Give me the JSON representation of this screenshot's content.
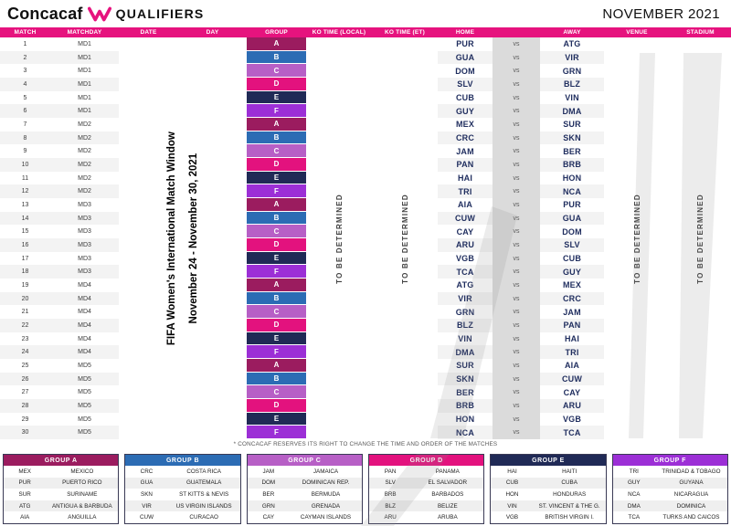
{
  "header": {
    "brand": "Concacaf",
    "title": "QUALIFIERS",
    "month": "NOVEMBER 2021"
  },
  "colors": {
    "header_bar": "#E6137E",
    "vs_strip": "#DBDBDB",
    "team_text": "#1F2D5E",
    "groups": {
      "A": "#9B1C5F",
      "B": "#2C6CB4",
      "C": "#B75FC6",
      "D": "#E3127E",
      "E": "#202A56",
      "F": "#9C2FD6"
    }
  },
  "table": {
    "columns": [
      "MATCH",
      "MATCHDAY",
      "DATE",
      "DAY",
      "GROUP",
      "KO TIME (LOCAL)",
      "KO TIME (ET)",
      "HOME",
      "",
      "AWAY",
      "VENUE",
      "STADIUM"
    ],
    "vs_label": "vs",
    "merged": {
      "match_window_line1": "FIFA Women's International Match Window",
      "match_window_line2": "November 24 - November 30, 2021",
      "ko_time_local": "TO BE DETERMINED",
      "ko_time_et": "TO BE DETERMINED",
      "venue": "TO BE DETERMINED",
      "stadium": "TO BE DETERMINED"
    },
    "matches": [
      {
        "match": 1,
        "matchday": "MD1",
        "group": "A",
        "home": "PUR",
        "away": "ATG"
      },
      {
        "match": 2,
        "matchday": "MD1",
        "group": "B",
        "home": "GUA",
        "away": "VIR"
      },
      {
        "match": 3,
        "matchday": "MD1",
        "group": "C",
        "home": "DOM",
        "away": "GRN"
      },
      {
        "match": 4,
        "matchday": "MD1",
        "group": "D",
        "home": "SLV",
        "away": "BLZ"
      },
      {
        "match": 5,
        "matchday": "MD1",
        "group": "E",
        "home": "CUB",
        "away": "VIN"
      },
      {
        "match": 6,
        "matchday": "MD1",
        "group": "F",
        "home": "GUY",
        "away": "DMA"
      },
      {
        "match": 7,
        "matchday": "MD2",
        "group": "A",
        "home": "MEX",
        "away": "SUR"
      },
      {
        "match": 8,
        "matchday": "MD2",
        "group": "B",
        "home": "CRC",
        "away": "SKN"
      },
      {
        "match": 9,
        "matchday": "MD2",
        "group": "C",
        "home": "JAM",
        "away": "BER"
      },
      {
        "match": 10,
        "matchday": "MD2",
        "group": "D",
        "home": "PAN",
        "away": "BRB"
      },
      {
        "match": 11,
        "matchday": "MD2",
        "group": "E",
        "home": "HAI",
        "away": "HON"
      },
      {
        "match": 12,
        "matchday": "MD2",
        "group": "F",
        "home": "TRI",
        "away": "NCA"
      },
      {
        "match": 13,
        "matchday": "MD3",
        "group": "A",
        "home": "AIA",
        "away": "PUR"
      },
      {
        "match": 14,
        "matchday": "MD3",
        "group": "B",
        "home": "CUW",
        "away": "GUA"
      },
      {
        "match": 15,
        "matchday": "MD3",
        "group": "C",
        "home": "CAY",
        "away": "DOM"
      },
      {
        "match": 16,
        "matchday": "MD3",
        "group": "D",
        "home": "ARU",
        "away": "SLV"
      },
      {
        "match": 17,
        "matchday": "MD3",
        "group": "E",
        "home": "VGB",
        "away": "CUB"
      },
      {
        "match": 18,
        "matchday": "MD3",
        "group": "F",
        "home": "TCA",
        "away": "GUY"
      },
      {
        "match": 19,
        "matchday": "MD4",
        "group": "A",
        "home": "ATG",
        "away": "MEX"
      },
      {
        "match": 20,
        "matchday": "MD4",
        "group": "B",
        "home": "VIR",
        "away": "CRC"
      },
      {
        "match": 21,
        "matchday": "MD4",
        "group": "C",
        "home": "GRN",
        "away": "JAM"
      },
      {
        "match": 22,
        "matchday": "MD4",
        "group": "D",
        "home": "BLZ",
        "away": "PAN"
      },
      {
        "match": 23,
        "matchday": "MD4",
        "group": "E",
        "home": "VIN",
        "away": "HAI"
      },
      {
        "match": 24,
        "matchday": "MD4",
        "group": "F",
        "home": "DMA",
        "away": "TRI"
      },
      {
        "match": 25,
        "matchday": "MD5",
        "group": "A",
        "home": "SUR",
        "away": "AIA"
      },
      {
        "match": 26,
        "matchday": "MD5",
        "group": "B",
        "home": "SKN",
        "away": "CUW"
      },
      {
        "match": 27,
        "matchday": "MD5",
        "group": "C",
        "home": "BER",
        "away": "CAY"
      },
      {
        "match": 28,
        "matchday": "MD5",
        "group": "D",
        "home": "BRB",
        "away": "ARU"
      },
      {
        "match": 29,
        "matchday": "MD5",
        "group": "E",
        "home": "HON",
        "away": "VGB"
      },
      {
        "match": 30,
        "matchday": "MD5",
        "group": "F",
        "home": "NCA",
        "away": "TCA"
      }
    ]
  },
  "footnote": "* CONCACAF RESERVES ITS RIGHT TO CHANGE THE TIME AND ORDER OF THE MATCHES",
  "legend": [
    {
      "label": "GROUP A",
      "group": "A",
      "teams": [
        {
          "code": "MEX",
          "name": "MEXICO"
        },
        {
          "code": "PUR",
          "name": "PUERTO RICO"
        },
        {
          "code": "SUR",
          "name": "SURINAME"
        },
        {
          "code": "ATG",
          "name": "ANTIGUA & BARBUDA"
        },
        {
          "code": "AIA",
          "name": "ANGUILLA"
        }
      ]
    },
    {
      "label": "GROUP B",
      "group": "B",
      "teams": [
        {
          "code": "CRC",
          "name": "COSTA RICA"
        },
        {
          "code": "GUA",
          "name": "GUATEMALA"
        },
        {
          "code": "SKN",
          "name": "ST KITTS & NEVIS"
        },
        {
          "code": "VIR",
          "name": "US VIRGIN ISLANDS"
        },
        {
          "code": "CUW",
          "name": "CURACAO"
        }
      ]
    },
    {
      "label": "GROUP C",
      "group": "C",
      "teams": [
        {
          "code": "JAM",
          "name": "JAMAICA"
        },
        {
          "code": "DOM",
          "name": "DOMINICAN REP."
        },
        {
          "code": "BER",
          "name": "BERMUDA"
        },
        {
          "code": "GRN",
          "name": "GRENADA"
        },
        {
          "code": "CAY",
          "name": "CAYMAN ISLANDS"
        }
      ]
    },
    {
      "label": "GROUP D",
      "group": "D",
      "teams": [
        {
          "code": "PAN",
          "name": "PANAMA"
        },
        {
          "code": "SLV",
          "name": "EL SALVADOR"
        },
        {
          "code": "BRB",
          "name": "BARBADOS"
        },
        {
          "code": "BLZ",
          "name": "BELIZE"
        },
        {
          "code": "ARU",
          "name": "ARUBA"
        }
      ]
    },
    {
      "label": "GROUP E",
      "group": "E",
      "teams": [
        {
          "code": "HAI",
          "name": "HAITI"
        },
        {
          "code": "CUB",
          "name": "CUBA"
        },
        {
          "code": "HON",
          "name": "HONDURAS"
        },
        {
          "code": "VIN",
          "name": "ST. VINCENT & THE G."
        },
        {
          "code": "VGB",
          "name": "BRITISH VIRGIN I."
        }
      ]
    },
    {
      "label": "GROUP F",
      "group": "F",
      "teams": [
        {
          "code": "TRI",
          "name": "TRINIDAD & TOBAGO"
        },
        {
          "code": "GUY",
          "name": "GUYANA"
        },
        {
          "code": "NCA",
          "name": "NICARAGUA"
        },
        {
          "code": "DMA",
          "name": "DOMINICA"
        },
        {
          "code": "TCA",
          "name": "TURKS AND CAICOS"
        }
      ]
    }
  ]
}
